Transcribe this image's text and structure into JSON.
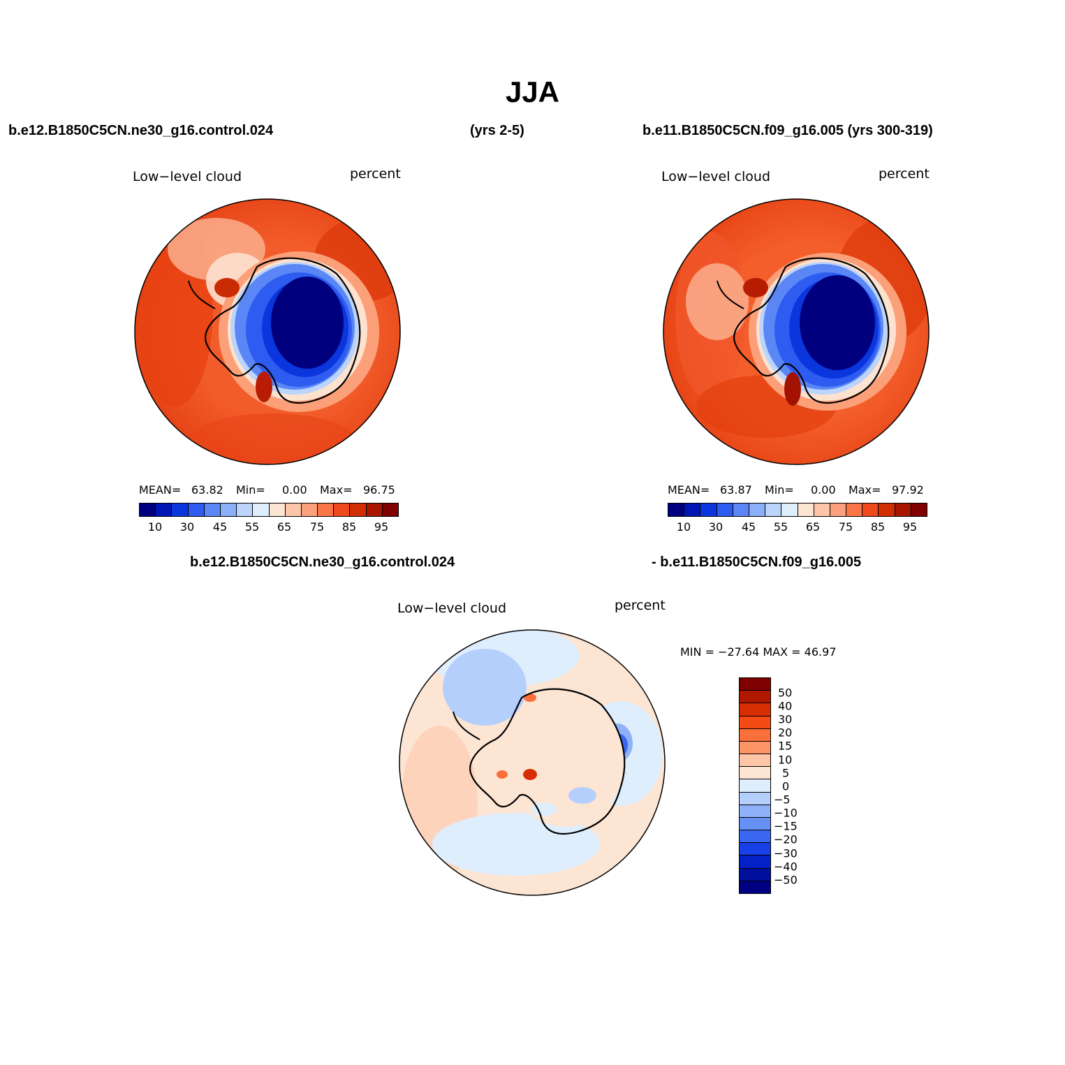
{
  "title": "JJA",
  "header": {
    "left_case": "b.e12.B1850C5CN.ne30_g16.control.024",
    "left_years": "(yrs 2-5)",
    "right_case": "b.e11.B1850C5CN.f09_g16.005 (yrs 300-319)"
  },
  "panels": [
    {
      "variable": "Low−level cloud",
      "units": "percent",
      "stats": {
        "mean_label": "MEAN=",
        "mean": "63.82",
        "min_label": "Min=",
        "min": "0.00",
        "max_label": "Max=",
        "max": "96.75"
      }
    },
    {
      "variable": "Low−level cloud",
      "units": "percent",
      "stats": {
        "mean_label": "MEAN=",
        "mean": "63.87",
        "min_label": "Min=",
        "min": "0.00",
        "max_label": "Max=",
        "max": "97.92"
      }
    }
  ],
  "diff": {
    "case_a": "b.e12.B1850C5CN.ne30_g16.control.024",
    "case_b": "- b.e11.B1850C5CN.f09_g16.005",
    "variable": "Low−level cloud",
    "units": "percent",
    "minmax": "MIN = −27.64 MAX =   46.97"
  },
  "colorbar": {
    "colors": [
      "#00007f",
      "#0016b4",
      "#0b36dd",
      "#2e5cf0",
      "#5a87f5",
      "#8cb0f8",
      "#bcd4fb",
      "#dfeefd",
      "#fde5d4",
      "#fdc6ab",
      "#fca17d",
      "#f87648",
      "#ee4a1d",
      "#d12e04",
      "#a81600",
      "#7f0000"
    ],
    "tick_labels": [
      "10",
      "30",
      "45",
      "55",
      "65",
      "75",
      "85",
      "95"
    ]
  },
  "diff_colorbar": {
    "colors": [
      "#7f0000",
      "#b11800",
      "#d82e04",
      "#f44b15",
      "#fb6f3b",
      "#fd9466",
      "#fec6a8",
      "#fde5d4",
      "#dfeefd",
      "#b5cffc",
      "#8fb1f9",
      "#6790f6",
      "#3a68f2",
      "#1741e7",
      "#0321c6",
      "#00109c",
      "#000080"
    ],
    "labels": [
      "50",
      "40",
      "30",
      "20",
      "15",
      "10",
      "5",
      "0",
      "−5",
      "−10",
      "−15",
      "−20",
      "−30",
      "−40",
      "−50"
    ]
  }
}
